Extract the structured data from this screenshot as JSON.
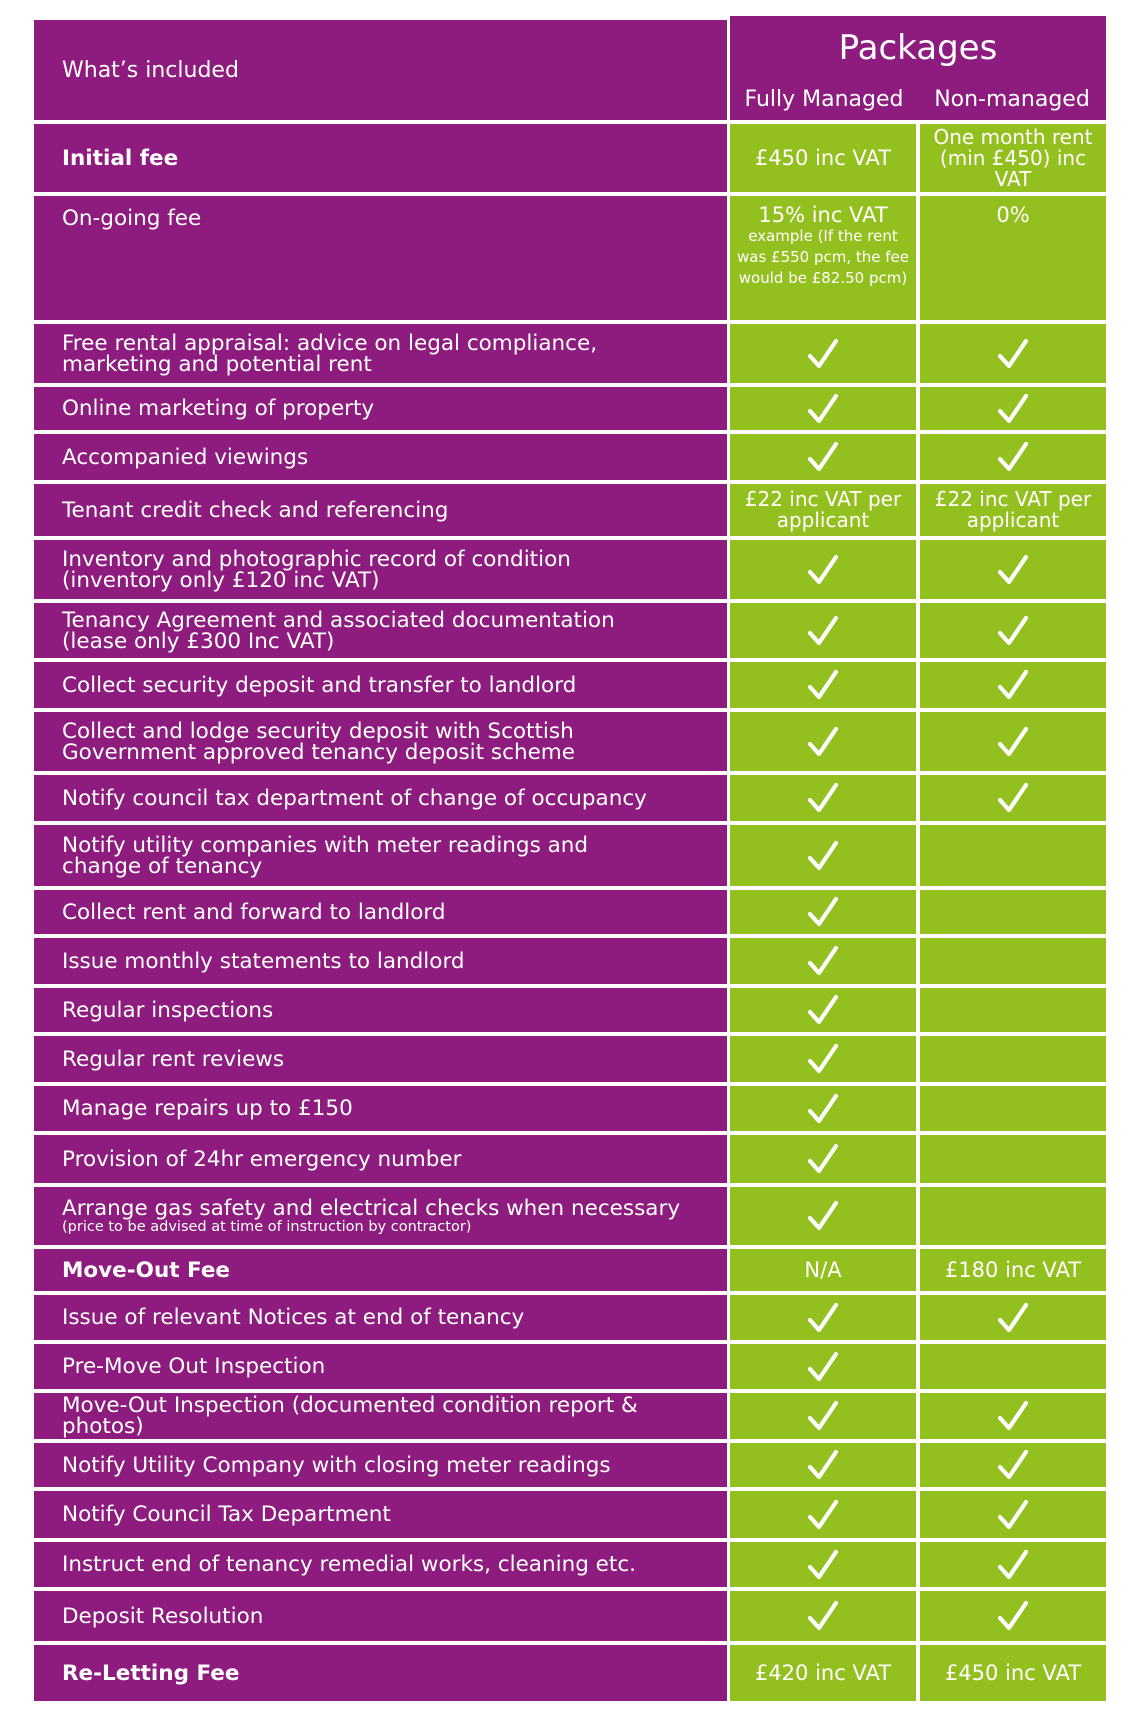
{
  "header": {
    "whats_included": "What’s included",
    "packages": "Packages",
    "col1": "Fully Managed",
    "col2": "Non-managed"
  },
  "rows": [
    {
      "label": "Initial fee",
      "bold": true,
      "v1": {
        "text": "£450 inc VAT"
      },
      "v2": {
        "text": "One month rent\n(min £450) inc VAT",
        "small": true
      }
    },
    {
      "label": "On-going fee",
      "bold": false,
      "v1": {
        "text": "15% inc VAT",
        "sub": "example (If the rent\nwas £550 pcm, the fee\nwould be £82.50 pcm)"
      },
      "v2": {
        "text": "0%"
      }
    },
    {
      "label": "Free rental appraisal: advice on legal compliance,\nmarketing and potential rent",
      "v1": {
        "check": true
      },
      "v2": {
        "check": true
      }
    },
    {
      "label": "Online marketing of property",
      "v1": {
        "check": true
      },
      "v2": {
        "check": true
      }
    },
    {
      "label": "Accompanied viewings",
      "v1": {
        "check": true
      },
      "v2": {
        "check": true
      }
    },
    {
      "label": "Tenant credit check and referencing",
      "v1": {
        "text": "£22 inc VAT per\napplicant",
        "small": true
      },
      "v2": {
        "text": "£22 inc VAT per\napplicant",
        "small": true
      }
    },
    {
      "label": "Inventory and photographic record of condition\n(inventory only £120 inc VAT)",
      "v1": {
        "check": true
      },
      "v2": {
        "check": true
      }
    },
    {
      "label": "Tenancy Agreement and associated documentation\n(lease only £300 Inc VAT)",
      "v1": {
        "check": true
      },
      "v2": {
        "check": true
      }
    },
    {
      "label": "Collect security deposit and transfer to landlord",
      "v1": {
        "check": true
      },
      "v2": {
        "check": true
      }
    },
    {
      "label": "Collect and lodge security deposit with Scottish\nGovernment approved tenancy deposit scheme",
      "v1": {
        "check": true
      },
      "v2": {
        "check": true
      }
    },
    {
      "label": "Notify council tax department of change of occupancy",
      "v1": {
        "check": true
      },
      "v2": {
        "check": true
      }
    },
    {
      "label": "Notify utility companies with meter readings and\nchange of tenancy",
      "v1": {
        "check": true
      },
      "v2": {
        "check": false
      }
    },
    {
      "label": "Collect rent and forward to landlord",
      "v1": {
        "check": true
      },
      "v2": {
        "check": false
      }
    },
    {
      "label": "Issue monthly statements to landlord",
      "v1": {
        "check": true
      },
      "v2": {
        "check": false
      }
    },
    {
      "label": "Regular inspections",
      "v1": {
        "check": true
      },
      "v2": {
        "check": false
      }
    },
    {
      "label": "Regular rent reviews",
      "v1": {
        "check": true
      },
      "v2": {
        "check": false
      }
    },
    {
      "label": "Manage repairs up to £150",
      "v1": {
        "check": true
      },
      "v2": {
        "check": false
      }
    },
    {
      "label": "Provision of 24hr emergency number",
      "v1": {
        "check": true
      },
      "v2": {
        "check": false
      }
    },
    {
      "label": "Arrange gas safety and electrical checks when necessary",
      "note": "(price to be advised at time of instruction by contractor)",
      "v1": {
        "check": true
      },
      "v2": {
        "check": false
      }
    },
    {
      "label": "Move-Out Fee",
      "bold": true,
      "v1": {
        "text": "N/A"
      },
      "v2": {
        "text": "£180 inc VAT"
      }
    },
    {
      "label": "Issue of relevant Notices at end of tenancy",
      "v1": {
        "check": true
      },
      "v2": {
        "check": true
      }
    },
    {
      "label": "Pre-Move Out Inspection",
      "v1": {
        "check": true
      },
      "v2": {
        "check": false
      }
    },
    {
      "label": "Move-Out Inspection (documented condition report & photos)",
      "v1": {
        "check": true
      },
      "v2": {
        "check": true
      }
    },
    {
      "label": "Notify Utility Company with closing meter readings",
      "v1": {
        "check": true
      },
      "v2": {
        "check": true
      }
    },
    {
      "label": "Notify Council Tax Department",
      "v1": {
        "check": true
      },
      "v2": {
        "check": true
      }
    },
    {
      "label": "Instruct end of tenancy remedial works, cleaning etc.",
      "v1": {
        "check": true
      },
      "v2": {
        "check": true
      }
    },
    {
      "label": "Deposit Resolution",
      "v1": {
        "check": true
      },
      "v2": {
        "check": true
      }
    },
    {
      "label": "Re-Letting Fee",
      "bold": true,
      "v1": {
        "text": "£420 inc VAT"
      },
      "v2": {
        "text": "£450 inc VAT"
      }
    }
  ]
}
